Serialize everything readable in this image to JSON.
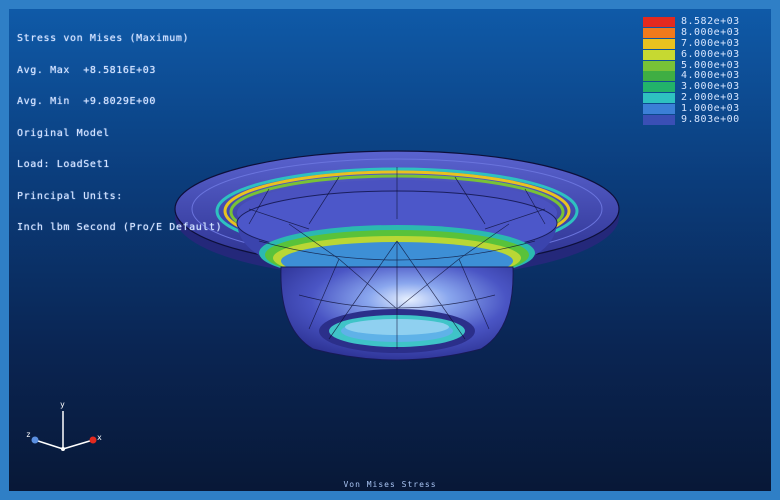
{
  "header": {
    "lines": [
      "Stress von Mises (Maximum)",
      "Avg. Max  +8.5816E+03",
      "Avg. Min  +9.8029E+00",
      "Original Model",
      "Load: LoadSet1",
      "Principal Units:",
      "Inch lbm Second (Pro/E Default)"
    ]
  },
  "legend": {
    "entries": [
      {
        "label": "8.582e+03",
        "color": "#e32a1f"
      },
      {
        "label": "8.000e+03",
        "color": "#f07a1c"
      },
      {
        "label": "7.000e+03",
        "color": "#e9c21f"
      },
      {
        "label": "6.000e+03",
        "color": "#c6d931"
      },
      {
        "label": "5.000e+03",
        "color": "#78c237"
      },
      {
        "label": "4.000e+03",
        "color": "#3fae43"
      },
      {
        "label": "3.000e+03",
        "color": "#22b36a"
      },
      {
        "label": "2.000e+03",
        "color": "#2ec1c0"
      },
      {
        "label": "1.000e+03",
        "color": "#3b7fd6"
      },
      {
        "label": "9.803e+00",
        "color": "#3a4fb5"
      }
    ]
  },
  "triad": {
    "x_label": "x",
    "y_label": "y",
    "z_label": "z"
  },
  "footer": {
    "caption": "Von Mises Stress"
  }
}
